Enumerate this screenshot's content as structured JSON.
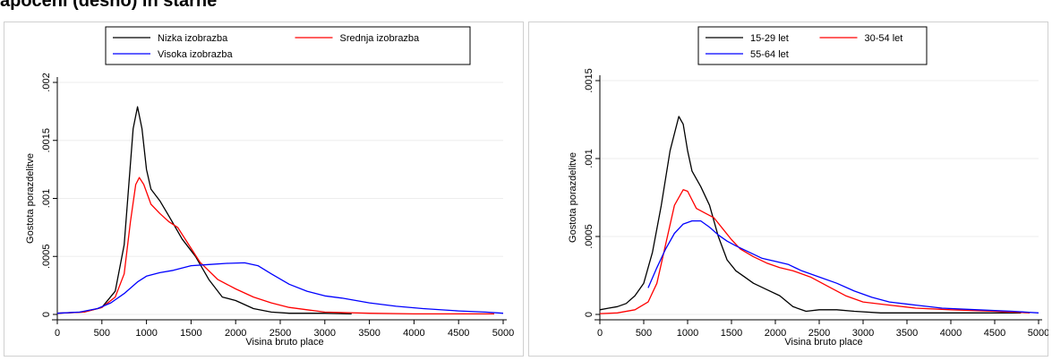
{
  "caption": "apočeni (desno) in starne",
  "chart_data": [
    {
      "type": "line",
      "xlabel": "Visina bruto place",
      "ylabel": "Gostota porazdelitve",
      "xlim": [
        0,
        5000
      ],
      "ylim": [
        0,
        0.002
      ],
      "xticks": [
        "0",
        "500",
        "1000",
        "1500",
        "2000",
        "2500",
        "3000",
        "3500",
        "4000",
        "4500",
        "5000"
      ],
      "xtick_values": [
        0,
        500,
        1000,
        1500,
        2000,
        2500,
        3000,
        3500,
        4000,
        4500,
        5000
      ],
      "yticks": [
        "0",
        ".0005",
        ".001",
        ".0015",
        ".002"
      ],
      "ytick_values": [
        0,
        0.0005,
        0.001,
        0.0015,
        0.002
      ],
      "grid": "horizontal",
      "legend_position": "top",
      "series": [
        {
          "name": "Nizka izobrazba",
          "color": "#000000",
          "points": [
            [
              0,
              1e-05
            ],
            [
              300,
              2e-05
            ],
            [
              500,
              6e-05
            ],
            [
              650,
              0.0002
            ],
            [
              750,
              0.0006
            ],
            [
              800,
              0.0011
            ],
            [
              850,
              0.0016
            ],
            [
              900,
              0.00179
            ],
            [
              950,
              0.0016
            ],
            [
              1000,
              0.00125
            ],
            [
              1050,
              0.00108
            ],
            [
              1150,
              0.00098
            ],
            [
              1250,
              0.00085
            ],
            [
              1400,
              0.00065
            ],
            [
              1550,
              0.0005
            ],
            [
              1700,
              0.0003
            ],
            [
              1850,
              0.00015
            ],
            [
              2000,
              0.00012
            ],
            [
              2200,
              5e-05
            ],
            [
              2400,
              2e-05
            ],
            [
              2600,
              1e-05
            ],
            [
              2800,
              1e-05
            ],
            [
              3000,
              1e-05
            ],
            [
              3300,
              5e-06
            ]
          ]
        },
        {
          "name": "Srednja izobrazba",
          "color": "#ff0000",
          "points": [
            [
              0,
              1e-05
            ],
            [
              300,
              2e-05
            ],
            [
              500,
              6e-05
            ],
            [
              650,
              0.00015
            ],
            [
              750,
              0.00035
            ],
            [
              820,
              0.0008
            ],
            [
              880,
              0.00112
            ],
            [
              920,
              0.00118
            ],
            [
              970,
              0.00112
            ],
            [
              1050,
              0.00095
            ],
            [
              1150,
              0.00087
            ],
            [
              1250,
              0.0008
            ],
            [
              1350,
              0.00075
            ],
            [
              1450,
              0.00063
            ],
            [
              1600,
              0.00045
            ],
            [
              1800,
              0.0003
            ],
            [
              2000,
              0.00022
            ],
            [
              2200,
              0.00015
            ],
            [
              2400,
              0.0001
            ],
            [
              2600,
              6e-05
            ],
            [
              2800,
              4e-05
            ],
            [
              3000,
              2e-05
            ],
            [
              3500,
              1e-05
            ],
            [
              4000,
              5e-06
            ],
            [
              4900,
              5e-06
            ]
          ]
        },
        {
          "name": "Visoka izobrazba",
          "color": "#0000ff",
          "points": [
            [
              0,
              1e-05
            ],
            [
              250,
              2e-05
            ],
            [
              450,
              5e-05
            ],
            [
              600,
              0.0001
            ],
            [
              750,
              0.00018
            ],
            [
              900,
              0.00028
            ],
            [
              1000,
              0.00033
            ],
            [
              1150,
              0.00036
            ],
            [
              1300,
              0.00038
            ],
            [
              1500,
              0.00042
            ],
            [
              1700,
              0.00043
            ],
            [
              1900,
              0.00044
            ],
            [
              2100,
              0.000445
            ],
            [
              2250,
              0.00042
            ],
            [
              2400,
              0.00035
            ],
            [
              2600,
              0.00026
            ],
            [
              2800,
              0.0002
            ],
            [
              3000,
              0.00016
            ],
            [
              3200,
              0.00014
            ],
            [
              3500,
              0.0001
            ],
            [
              3800,
              7e-05
            ],
            [
              4100,
              5e-05
            ],
            [
              4500,
              3e-05
            ],
            [
              4800,
              2e-05
            ],
            [
              5000,
              1e-05
            ]
          ]
        }
      ]
    },
    {
      "type": "line",
      "xlabel": "Visina bruto place",
      "ylabel": "Gostota porazdelitve",
      "xlim": [
        0,
        5000
      ],
      "ylim": [
        0,
        0.0015
      ],
      "xticks": [
        "0",
        "500",
        "1000",
        "1500",
        "2000",
        "2500",
        "3000",
        "3500",
        "4000",
        "4500",
        "5000"
      ],
      "xtick_values": [
        0,
        500,
        1000,
        1500,
        2000,
        2500,
        3000,
        3500,
        4000,
        4500,
        5000
      ],
      "yticks": [
        "0",
        ".0005",
        ".001",
        ".0015"
      ],
      "ytick_values": [
        0,
        0.0005,
        0.001,
        0.0015
      ],
      "grid": "horizontal",
      "legend_position": "top",
      "series": [
        {
          "name": "15-29 let",
          "color": "#000000",
          "points": [
            [
              0,
              3e-05
            ],
            [
              100,
              4e-05
            ],
            [
              200,
              5e-05
            ],
            [
              300,
              7e-05
            ],
            [
              400,
              0.00012
            ],
            [
              500,
              0.0002
            ],
            [
              600,
              0.0004
            ],
            [
              700,
              0.0007
            ],
            [
              800,
              0.00105
            ],
            [
              900,
              0.00127
            ],
            [
              950,
              0.00122
            ],
            [
              1000,
              0.00105
            ],
            [
              1050,
              0.00092
            ],
            [
              1150,
              0.00082
            ],
            [
              1250,
              0.0007
            ],
            [
              1350,
              0.0005
            ],
            [
              1450,
              0.00035
            ],
            [
              1550,
              0.00028
            ],
            [
              1650,
              0.00024
            ],
            [
              1750,
              0.0002
            ],
            [
              1900,
              0.00016
            ],
            [
              2050,
              0.00012
            ],
            [
              2200,
              5e-05
            ],
            [
              2350,
              2e-05
            ],
            [
              2500,
              3e-05
            ],
            [
              2700,
              3e-05
            ],
            [
              2900,
              2e-05
            ],
            [
              3200,
              1e-05
            ],
            [
              3600,
              1e-05
            ],
            [
              4200,
              1e-05
            ],
            [
              4800,
              1e-05
            ]
          ]
        },
        {
          "name": "30-54 let",
          "color": "#ff0000",
          "points": [
            [
              0,
              5e-06
            ],
            [
              200,
              1e-05
            ],
            [
              400,
              3e-05
            ],
            [
              550,
              8e-05
            ],
            [
              650,
              0.0002
            ],
            [
              750,
              0.00045
            ],
            [
              850,
              0.0007
            ],
            [
              950,
              0.0008
            ],
            [
              1000,
              0.00079
            ],
            [
              1100,
              0.00068
            ],
            [
              1200,
              0.00065
            ],
            [
              1300,
              0.00062
            ],
            [
              1400,
              0.00055
            ],
            [
              1500,
              0.00048
            ],
            [
              1600,
              0.00042
            ],
            [
              1750,
              0.00037
            ],
            [
              1900,
              0.00033
            ],
            [
              2050,
              0.0003
            ],
            [
              2200,
              0.00028
            ],
            [
              2400,
              0.00024
            ],
            [
              2600,
              0.00018
            ],
            [
              2800,
              0.00012
            ],
            [
              3000,
              8e-05
            ],
            [
              3300,
              6e-05
            ],
            [
              3600,
              4e-05
            ],
            [
              4000,
              3e-05
            ],
            [
              4500,
              2e-05
            ],
            [
              4900,
              1e-05
            ]
          ]
        },
        {
          "name": "55-64 let",
          "color": "#0000ff",
          "points": [
            [
              550,
              0.00017
            ],
            [
              650,
              0.0003
            ],
            [
              750,
              0.00042
            ],
            [
              850,
              0.00052
            ],
            [
              950,
              0.00058
            ],
            [
              1050,
              0.0006
            ],
            [
              1150,
              0.0006
            ],
            [
              1250,
              0.00056
            ],
            [
              1350,
              0.00051
            ],
            [
              1450,
              0.00047
            ],
            [
              1550,
              0.00044
            ],
            [
              1700,
              0.0004
            ],
            [
              1850,
              0.00036
            ],
            [
              2000,
              0.00034
            ],
            [
              2150,
              0.00032
            ],
            [
              2300,
              0.00028
            ],
            [
              2500,
              0.00024
            ],
            [
              2700,
              0.0002
            ],
            [
              2900,
              0.00015
            ],
            [
              3100,
              0.00011
            ],
            [
              3300,
              8e-05
            ],
            [
              3600,
              6e-05
            ],
            [
              3900,
              4e-05
            ],
            [
              4300,
              3e-05
            ],
            [
              4700,
              2e-05
            ],
            [
              5000,
              1e-05
            ]
          ]
        }
      ]
    }
  ]
}
